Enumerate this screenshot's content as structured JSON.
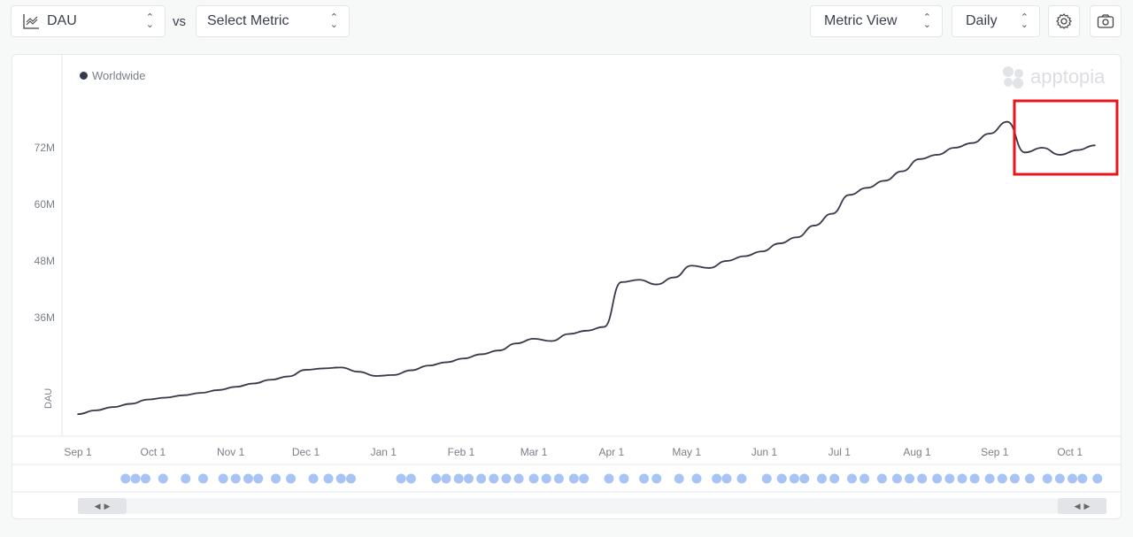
{
  "toolbar": {
    "metric_select": {
      "value": "DAU",
      "icon": "line-chart-icon"
    },
    "vs_label": "vs",
    "compare_select": {
      "value": "Select Metric"
    },
    "view_select": {
      "value": "Metric View"
    },
    "interval_select": {
      "value": "Daily"
    },
    "settings_icon": "gear-icon",
    "screenshot_icon": "camera-icon"
  },
  "brand": {
    "logo_text": "apptopia"
  },
  "colors": {
    "line": "#363a4a",
    "annotation": "#a8c4f5",
    "highlight": "#e8141a"
  },
  "chart_data": {
    "type": "line",
    "title": "",
    "ylabel": "DAU",
    "xlabel": "",
    "ylim": [
      11000000,
      82000000
    ],
    "y_ticks": [
      {
        "value": 36000000,
        "label": "36M"
      },
      {
        "value": 48000000,
        "label": "48M"
      },
      {
        "value": 60000000,
        "label": "60M"
      },
      {
        "value": 72000000,
        "label": "72M"
      }
    ],
    "x_ticks": [
      {
        "date": "2019-09-01",
        "label": "Sep 1"
      },
      {
        "date": "2019-10-01",
        "label": "Oct 1"
      },
      {
        "date": "2019-11-01",
        "label": "Nov 1"
      },
      {
        "date": "2019-12-01",
        "label": "Dec 1"
      },
      {
        "date": "2020-01-01",
        "label": "Jan 1"
      },
      {
        "date": "2020-02-01",
        "label": "Feb 1"
      },
      {
        "date": "2020-03-01",
        "label": "Mar 1"
      },
      {
        "date": "2020-04-01",
        "label": "Apr 1"
      },
      {
        "date": "2020-05-01",
        "label": "May 1"
      },
      {
        "date": "2020-06-01",
        "label": "Jun 1"
      },
      {
        "date": "2020-07-01",
        "label": "Jul 1"
      },
      {
        "date": "2020-08-01",
        "label": "Aug 1"
      },
      {
        "date": "2020-09-01",
        "label": "Sep 1"
      },
      {
        "date": "2020-10-01",
        "label": "Oct 1"
      }
    ],
    "grid": false,
    "legend": {
      "position": "top-left",
      "entries": [
        "Worldwide"
      ]
    },
    "series": [
      {
        "name": "Worldwide",
        "points": [
          [
            "2019-09-01",
            15.5
          ],
          [
            "2019-09-08",
            16.3
          ],
          [
            "2019-09-15",
            17.0
          ],
          [
            "2019-09-22",
            17.7
          ],
          [
            "2019-09-29",
            18.6
          ],
          [
            "2019-10-06",
            19.0
          ],
          [
            "2019-10-13",
            19.5
          ],
          [
            "2019-10-20",
            20.0
          ],
          [
            "2019-10-27",
            20.6
          ],
          [
            "2019-11-03",
            21.3
          ],
          [
            "2019-11-10",
            22.0
          ],
          [
            "2019-11-17",
            22.8
          ],
          [
            "2019-11-24",
            23.5
          ],
          [
            "2019-12-01",
            24.9
          ],
          [
            "2019-12-08",
            25.2
          ],
          [
            "2019-12-15",
            25.4
          ],
          [
            "2019-12-22",
            24.5
          ],
          [
            "2019-12-29",
            23.6
          ],
          [
            "2020-01-05",
            23.8
          ],
          [
            "2020-01-12",
            24.8
          ],
          [
            "2020-01-19",
            25.8
          ],
          [
            "2020-01-26",
            26.5
          ],
          [
            "2020-02-02",
            27.3
          ],
          [
            "2020-02-09",
            28.2
          ],
          [
            "2020-02-16",
            29.0
          ],
          [
            "2020-02-23",
            30.5
          ],
          [
            "2020-03-01",
            31.5
          ],
          [
            "2020-03-08",
            31.0
          ],
          [
            "2020-03-15",
            32.5
          ],
          [
            "2020-03-22",
            33.2
          ],
          [
            "2020-03-29",
            34.0
          ],
          [
            "2020-04-05",
            43.5
          ],
          [
            "2020-04-12",
            44.0
          ],
          [
            "2020-04-19",
            43.0
          ],
          [
            "2020-04-26",
            44.5
          ],
          [
            "2020-05-03",
            47.0
          ],
          [
            "2020-05-10",
            46.5
          ],
          [
            "2020-05-17",
            48.0
          ],
          [
            "2020-05-24",
            49.0
          ],
          [
            "2020-05-31",
            50.0
          ],
          [
            "2020-06-07",
            51.7
          ],
          [
            "2020-06-14",
            53.0
          ],
          [
            "2020-06-21",
            55.5
          ],
          [
            "2020-06-28",
            58.0
          ],
          [
            "2020-07-05",
            62.0
          ],
          [
            "2020-07-12",
            63.5
          ],
          [
            "2020-07-19",
            65.0
          ],
          [
            "2020-07-26",
            67.0
          ],
          [
            "2020-08-02",
            69.6
          ],
          [
            "2020-08-09",
            70.5
          ],
          [
            "2020-08-16",
            72.0
          ],
          [
            "2020-08-23",
            73.0
          ],
          [
            "2020-08-30",
            75.0
          ],
          [
            "2020-09-06",
            77.5
          ],
          [
            "2020-09-13",
            71.0
          ],
          [
            "2020-09-20",
            72.0
          ],
          [
            "2020-09-27",
            70.5
          ],
          [
            "2020-10-04",
            71.5
          ],
          [
            "2020-10-11",
            72.5
          ]
        ],
        "unit": "M"
      }
    ],
    "highlight_range": [
      "2020-09-06",
      "2020-10-12"
    ],
    "annotations": [
      "2019-09-20",
      "2019-09-24",
      "2019-09-28",
      "2019-10-05",
      "2019-10-14",
      "2019-10-21",
      "2019-10-29",
      "2019-11-03",
      "2019-11-08",
      "2019-11-12",
      "2019-11-19",
      "2019-11-25",
      "2019-12-04",
      "2019-12-10",
      "2019-12-15",
      "2019-12-19",
      "2020-01-08",
      "2020-01-12",
      "2020-01-22",
      "2020-01-26",
      "2020-01-31",
      "2020-02-04",
      "2020-02-09",
      "2020-02-14",
      "2020-02-19",
      "2020-02-24",
      "2020-03-01",
      "2020-03-06",
      "2020-03-11",
      "2020-03-17",
      "2020-03-21",
      "2020-03-31",
      "2020-04-06",
      "2020-04-14",
      "2020-04-19",
      "2020-04-28",
      "2020-05-05",
      "2020-05-13",
      "2020-05-17",
      "2020-05-23",
      "2020-06-02",
      "2020-06-08",
      "2020-06-13",
      "2020-06-17",
      "2020-06-24",
      "2020-06-29",
      "2020-07-06",
      "2020-07-11",
      "2020-07-18",
      "2020-07-24",
      "2020-07-29",
      "2020-08-03",
      "2020-08-09",
      "2020-08-14",
      "2020-08-19",
      "2020-08-24",
      "2020-08-30",
      "2020-09-04",
      "2020-09-09",
      "2020-09-15",
      "2020-09-22",
      "2020-09-27",
      "2020-10-02",
      "2020-10-06",
      "2020-10-12"
    ]
  }
}
